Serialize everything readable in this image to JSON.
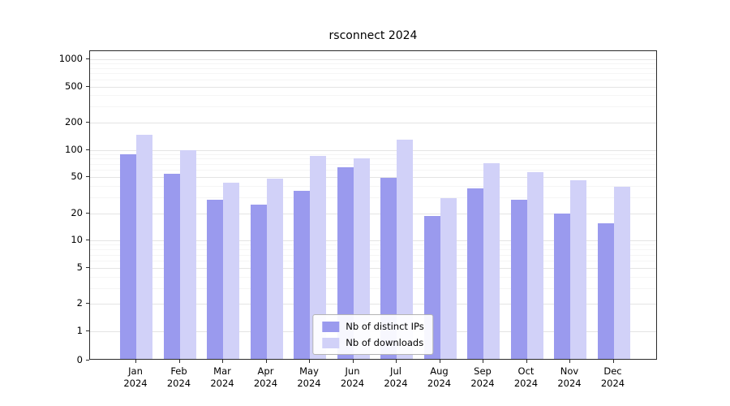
{
  "title": "rsconnect 2024",
  "chart_data": {
    "type": "bar",
    "title": "rsconnect 2024",
    "categories": [
      "Jan 2024",
      "Feb 2024",
      "Mar 2024",
      "Apr 2024",
      "May 2024",
      "Jun 2024",
      "Jul 2024",
      "Aug 2024",
      "Sep 2024",
      "Oct 2024",
      "Nov 2024",
      "Dec 2024"
    ],
    "series": [
      {
        "name": "Nb of distinct IPs",
        "color": "#9a9aee",
        "values": [
          85,
          52,
          27,
          24,
          34,
          62,
          47,
          18,
          36,
          27,
          19,
          15
        ]
      },
      {
        "name": "Nb of downloads",
        "color": "#d1d1f8",
        "values": [
          140,
          95,
          42,
          46,
          82,
          78,
          125,
          28,
          68,
          55,
          44,
          38
        ]
      }
    ],
    "yscale": "log",
    "yticks": [
      0,
      1,
      2,
      5,
      10,
      20,
      50,
      100,
      200,
      500,
      1000
    ],
    "ylim": [
      0,
      1400
    ],
    "grid": true,
    "legend_position": "lower center",
    "grid_major_color": "#e4e4e4",
    "grid_minor_color": "#f5f5f5"
  }
}
